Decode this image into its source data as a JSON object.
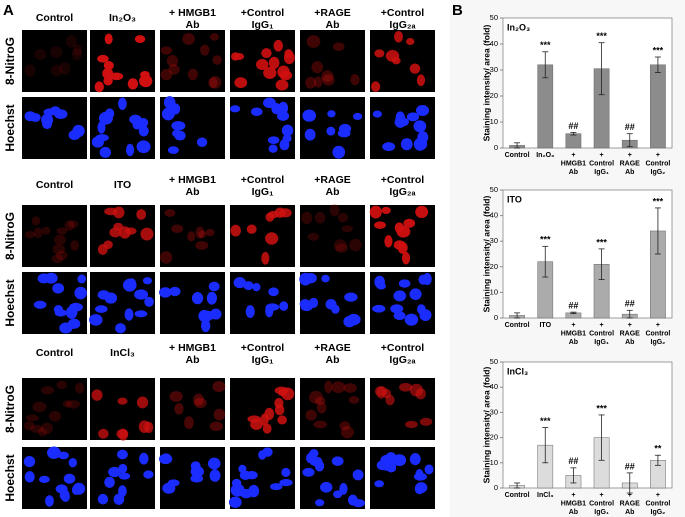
{
  "panel_a": {
    "label": "A",
    "rows": [
      "8-NitroG",
      "Hoechst"
    ],
    "groups": [
      {
        "headers": [
          "Control",
          "In₂O₃",
          "+ HMGB1\nAb",
          "+Control\nIgG₁",
          "+RAGE\nAb",
          "+Control\nIgG₂ₐ"
        ]
      },
      {
        "headers": [
          "Control",
          "ITO",
          "+ HMGB1\nAb",
          "+Control\nIgG₁",
          "+RAGE\nAb",
          "+Control\nIgG₂ₐ"
        ]
      },
      {
        "headers": [
          "Control",
          "InCl₃",
          "+ HMGB1\nAb",
          "+Control\nIgG₁",
          "+RAGE\nAb",
          "+Control\nIgG₂ₐ"
        ]
      }
    ]
  },
  "panel_b_label": "B",
  "chart_data": [
    {
      "type": "bar",
      "title": "In₂O₃",
      "ylabel": "Staining intensity/ area (fold)",
      "color": "#8c8c8c",
      "categories": [
        "Control",
        "In₂O₃",
        "+\nHMGB1\nAb",
        "+\nControl\nIgG₁",
        "+\nRAGE\nAb",
        "+\nControl\nIgG₂"
      ],
      "values": [
        1,
        32,
        5.5,
        30.5,
        3,
        32
      ],
      "errors": [
        1,
        5,
        0.5,
        10,
        2.5,
        3
      ],
      "annotations": [
        null,
        "***",
        "##",
        "***",
        "##",
        "***"
      ],
      "ylim": [
        0,
        50
      ],
      "yticks": [
        0,
        10,
        20,
        30,
        40,
        50
      ]
    },
    {
      "type": "bar",
      "title": "ITO",
      "ylabel": "Staining intensity/ area (fold)",
      "color": "#ababab",
      "categories": [
        "Control",
        "ITO",
        "+\nHMGB1\nAb",
        "+\nControl\nIgG₁",
        "+\nRAGE\nAb",
        "+\nControl\nIgG₂"
      ],
      "values": [
        1,
        22,
        2,
        21,
        1.5,
        34
      ],
      "errors": [
        1,
        6,
        0.3,
        6,
        1.5,
        9
      ],
      "annotations": [
        null,
        "***",
        "##",
        "***",
        "##",
        "***"
      ],
      "ylim": [
        0,
        50
      ],
      "yticks": [
        0,
        10,
        20,
        30,
        40,
        50
      ]
    },
    {
      "type": "bar",
      "title": "InCl₃",
      "ylabel": "Staining intensity/ area (fold)",
      "color": "#dcdcdc",
      "categories": [
        "Control",
        "InCl₃",
        "+\nHMGB1\nAb",
        "+\nControl\nIgG₁",
        "+\nRAGE\nAb",
        "+\nControl\nIgG₂"
      ],
      "values": [
        1,
        17,
        5,
        20,
        2,
        11
      ],
      "errors": [
        1,
        7,
        3,
        9,
        4,
        2
      ],
      "annotations": [
        null,
        "***",
        "##",
        "***",
        "##",
        "**"
      ],
      "ylim": [
        0,
        50
      ],
      "yticks": [
        0,
        10,
        20,
        30,
        40,
        50
      ]
    }
  ]
}
